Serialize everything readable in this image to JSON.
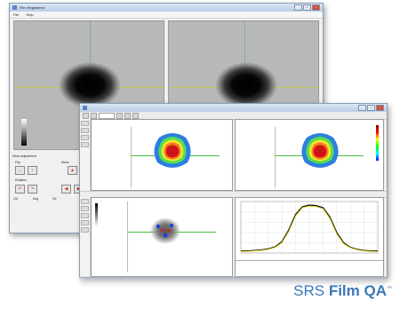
{
  "back_window": {
    "title": "Film Registered",
    "menu": [
      "File",
      "Help"
    ],
    "controls": {
      "section_label": "Move Adjustment",
      "flip_label": "Flip",
      "move_label": "Move",
      "rotation_label": "Rotation",
      "field_labels": [
        "Clk",
        "Ang",
        "Ctr"
      ]
    }
  },
  "front_window": {
    "title_bar": "",
    "window_buttons": [
      "_",
      "□",
      "x"
    ]
  },
  "branding": {
    "name_prefix": "SRS",
    "name_bold": "Film QA",
    "trademark": "™",
    "color": "#3a78b8"
  },
  "colors": {
    "crosshair_green": "#3fbf3f",
    "profile_black": "#111111",
    "profile_yellow": "#d9d21a"
  },
  "chart_data": {
    "type": "line",
    "title": "",
    "xlabel": "",
    "ylabel": "",
    "x": [
      0,
      5,
      10,
      15,
      20,
      25,
      30,
      35,
      40,
      45,
      50,
      55,
      60,
      65,
      70,
      75,
      80,
      85,
      90,
      95,
      100
    ],
    "series": [
      {
        "values": [
          4,
          4,
          5,
          6,
          8,
          12,
          22,
          45,
          75,
          90,
          93,
          92,
          88,
          70,
          40,
          20,
          11,
          7,
          5,
          4,
          4
        ]
      },
      {
        "values": [
          3,
          3,
          4,
          5,
          7,
          11,
          20,
          42,
          72,
          88,
          91,
          90,
          86,
          67,
          37,
          18,
          10,
          6,
          4,
          3,
          3
        ]
      }
    ],
    "ylim": [
      0,
      100
    ],
    "grid": true
  }
}
